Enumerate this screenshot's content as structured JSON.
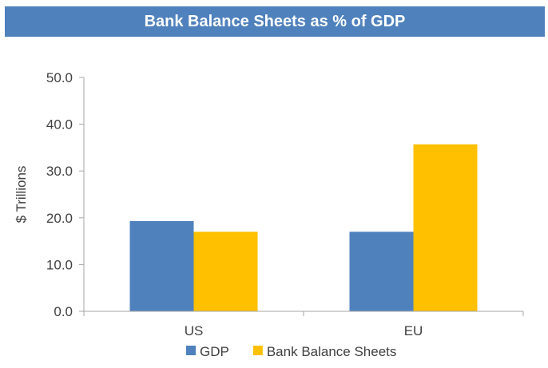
{
  "chart_data": {
    "type": "bar",
    "title": "Bank Balance Sheets as % of GDP",
    "xlabel": "",
    "ylabel": "$ Trillions",
    "categories": [
      "US",
      "EU"
    ],
    "series": [
      {
        "name": "GDP",
        "values": [
          19.3,
          17.0
        ],
        "color": "#4f81bd"
      },
      {
        "name": "Bank Balance Sheets",
        "values": [
          17.0,
          35.7
        ],
        "color": "#ffc000"
      }
    ],
    "ylim": [
      0,
      50
    ],
    "yticks": [
      0,
      10,
      20,
      30,
      40,
      50
    ],
    "ytick_labels": [
      "0.0",
      "10.0",
      "20.0",
      "30.0",
      "40.0",
      "50.0"
    ],
    "grid": false,
    "legend_position": "bottom"
  },
  "colors": {
    "title_bar": "#4f81bd",
    "title_text": "#ffffff",
    "axis": "#a6a6a6",
    "text": "#404040"
  }
}
